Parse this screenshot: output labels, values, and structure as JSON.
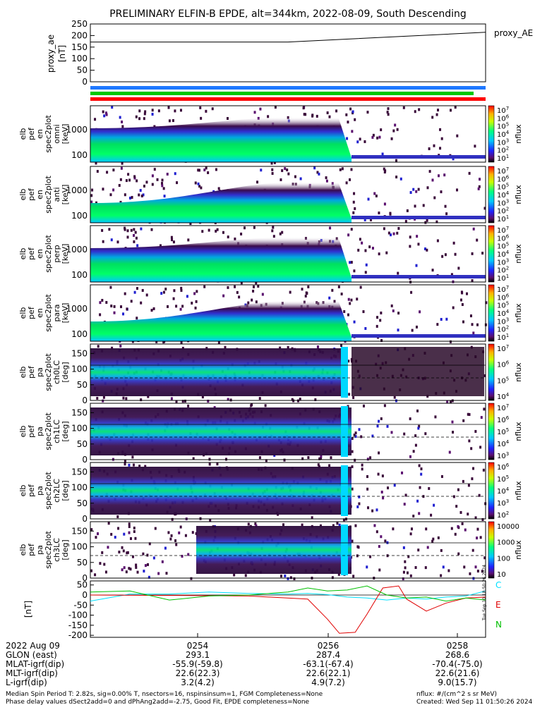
{
  "title": "PRELIMINARY ELFIN-B EPDE, alt=344km, 2022-08-09, South Descending",
  "colors": {
    "bar_blue": "#1e78ff",
    "bar_green": "#00c800",
    "bar_red": "#ff0000",
    "trace_C": "#00e0ff",
    "trace_E": "#e00000",
    "trace_N": "#00c000",
    "frame": "#000000"
  },
  "status_bars": [
    "blue",
    "green",
    "red"
  ],
  "chart_data": [
    {
      "type": "line",
      "panel": "proxy_ae",
      "ylabel": "proxy_ae [nT]",
      "yticks": [
        "250",
        "200",
        "150",
        "100",
        "50",
        "0"
      ],
      "ylim": [
        0,
        250
      ],
      "legend": "proxy_AE",
      "series": [
        {
          "name": "proxy_AE",
          "x": [
            0,
            0.5,
            1.0
          ],
          "values": [
            172,
            172,
            214
          ]
        }
      ]
    },
    {
      "type": "heatmap",
      "panel": "elb_pef_en_spec2plot_omni",
      "ylabel": [
        "elb",
        "pef",
        "en",
        "spec2plot",
        "omni",
        "[keV]"
      ],
      "yticks": [
        "1000",
        "100"
      ],
      "yscale": "log",
      "colorbar": {
        "label": "nflux",
        "scale": "log",
        "ticks": [
          "10^7",
          "10^6",
          "10^5",
          "10^4",
          "10^3",
          "10^2",
          "10^1"
        ]
      }
    },
    {
      "type": "heatmap",
      "panel": "elb_pef_en_spec2plot_anti",
      "ylabel": [
        "elb",
        "pef",
        "en",
        "spec2plot",
        "anti",
        "[keV]"
      ],
      "yticks": [
        "1000",
        "100"
      ],
      "yscale": "log",
      "colorbar": {
        "label": "nflux",
        "scale": "log",
        "ticks": [
          "10^7",
          "10^6",
          "10^5",
          "10^4",
          "10^3",
          "10^2",
          "10^1"
        ]
      }
    },
    {
      "type": "heatmap",
      "panel": "elb_pef_en_spec2plot_perp",
      "ylabel": [
        "elb",
        "pef",
        "en",
        "spec2plot",
        "perp",
        "[keV]"
      ],
      "yticks": [
        "1000",
        "100"
      ],
      "yscale": "log",
      "colorbar": {
        "label": "nflux",
        "scale": "log",
        "ticks": [
          "10^7",
          "10^6",
          "10^5",
          "10^4",
          "10^3",
          "10^2",
          "10^1"
        ]
      }
    },
    {
      "type": "heatmap",
      "panel": "elb_pef_en_spec2plot_para",
      "ylabel": [
        "elb",
        "pef",
        "en",
        "spec2plot",
        "para",
        "[keV]"
      ],
      "yticks": [
        "1000",
        "100"
      ],
      "yscale": "log",
      "colorbar": {
        "label": "nflux",
        "scale": "log",
        "ticks": [
          "10^7",
          "10^6",
          "10^5",
          "10^4",
          "10^3",
          "10^2",
          "10^1"
        ]
      }
    },
    {
      "type": "heatmap",
      "panel": "elb_pef_pa_spec2plot_ch0LC",
      "ylabel": [
        "elb",
        "pef",
        "pa",
        "spec2plot",
        "ch0LC",
        "[deg]"
      ],
      "yticks": [
        "150",
        "100",
        "50",
        "0"
      ],
      "ylim": [
        0,
        180
      ],
      "colorbar": {
        "label": "nflux",
        "scale": "log",
        "ticks": [
          "10^7",
          "10^6",
          "10^5",
          "10^4"
        ]
      }
    },
    {
      "type": "heatmap",
      "panel": "elb_pef_pa_spec2plot_ch1LC",
      "ylabel": [
        "elb",
        "pef",
        "pa",
        "spec2plot",
        "ch1LC",
        "[deg]"
      ],
      "yticks": [
        "150",
        "100",
        "50",
        "0"
      ],
      "ylim": [
        0,
        180
      ],
      "colorbar": {
        "label": "nflux",
        "scale": "log",
        "ticks": [
          "10^7",
          "10^6",
          "10^5",
          "10^4",
          "10^3"
        ]
      }
    },
    {
      "type": "heatmap",
      "panel": "elb_pef_pa_spec2plot_ch2LC",
      "ylabel": [
        "elb",
        "pef",
        "pa",
        "spec2plot",
        "ch2LC",
        "[deg]"
      ],
      "yticks": [
        "150",
        "100",
        "50",
        "0"
      ],
      "ylim": [
        0,
        180
      ],
      "colorbar": {
        "label": "nflux",
        "scale": "log",
        "ticks": [
          "10^6",
          "10^5",
          "10^4",
          "10^3",
          "10^2"
        ]
      }
    },
    {
      "type": "heatmap",
      "panel": "elb_pef_pa_spec2plot_ch3LC",
      "ylabel": [
        "elb",
        "pef",
        "pa",
        "spec2plot",
        "ch3LC",
        "[deg]"
      ],
      "yticks": [
        "150",
        "100",
        "50",
        "0"
      ],
      "ylim": [
        0,
        180
      ],
      "colorbar": {
        "label": "nflux",
        "scale": "log",
        "ticks": [
          "10000",
          "1000",
          "100",
          "10"
        ]
      }
    },
    {
      "type": "line",
      "panel": "magnetic_field",
      "ylabel": "[nT]",
      "yticks": [
        "50",
        "0",
        "-50",
        "-100",
        "-150",
        "-200"
      ],
      "ylim": [
        -210,
        70
      ],
      "legend": [
        "C",
        "E",
        "N"
      ],
      "series": [
        {
          "name": "C",
          "x": [
            0,
            0.1,
            0.2,
            0.3,
            0.4,
            0.5,
            0.55,
            0.6,
            0.65,
            0.7,
            0.75,
            0.8,
            0.85,
            0.9,
            0.95,
            1.0
          ],
          "values": [
            -30,
            5,
            5,
            15,
            8,
            5,
            8,
            2,
            -10,
            -15,
            -25,
            -15,
            -20,
            -10,
            -5,
            20
          ]
        },
        {
          "name": "E",
          "x": [
            0,
            0.2,
            0.4,
            0.55,
            0.6,
            0.63,
            0.67,
            0.7,
            0.74,
            0.78,
            0.8,
            0.85,
            0.9,
            0.95,
            1.0
          ],
          "values": [
            0,
            -2,
            -5,
            -20,
            -120,
            -190,
            -185,
            -95,
            35,
            45,
            -20,
            -80,
            -40,
            -15,
            -10
          ]
        },
        {
          "name": "N",
          "x": [
            0,
            0.1,
            0.2,
            0.3,
            0.4,
            0.5,
            0.55,
            0.6,
            0.65,
            0.7,
            0.75,
            0.8,
            0.85,
            0.9,
            0.95,
            1.0
          ],
          "values": [
            15,
            20,
            -25,
            -5,
            0,
            15,
            35,
            20,
            25,
            45,
            0,
            -15,
            -10,
            -30,
            -15,
            -25
          ]
        }
      ]
    }
  ],
  "x_axis": {
    "ticks": [
      "0254",
      "0256",
      "0258"
    ],
    "rows": [
      {
        "label": "2022 Aug 09",
        "values": [
          "0254",
          "0256",
          "0258"
        ]
      },
      {
        "label": "GLON (east)",
        "values": [
          "293.1",
          "287.4",
          "268.6"
        ]
      },
      {
        "label": "MLAT-igrf(dip)",
        "values": [
          "-55.9(-59.8)",
          "-63.1(-67.4)",
          "-70.4(-75.0)"
        ]
      },
      {
        "label": "MLT-igrf(dip)",
        "values": [
          "22.6(22.3)",
          "22.6(22.1)",
          "22.6(21.6)"
        ]
      },
      {
        "label": "L-igrf(dip)",
        "values": [
          "3.2(4.2)",
          "4.9(7.2)",
          "9.0(15.7)"
        ]
      }
    ]
  },
  "footer": {
    "line1_left": "Median Spin Period T: 2.82s, sig=0.00% T, nsectors=16, nspinsinsum=1, FGM Completeness=None",
    "line2_left": "Phase delay values dSect2add=0 and dPhAng2add=-2.75, Good Fit, EPDE completeness=None",
    "line1_right": "nflux: #/(cm^2 s sr MeV)",
    "line2_right": "Created: Wed Sep 11 01:50:26 2024",
    "vertical_stamp": "Tue Sep 10 18:50:26 2024"
  }
}
